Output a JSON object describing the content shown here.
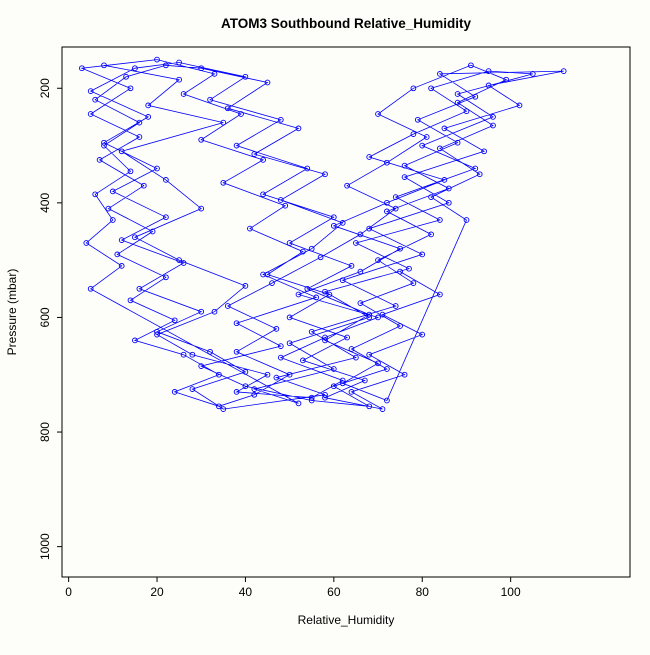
{
  "chart_data": {
    "type": "line",
    "title": "ATOM3 Southbound Relative_Humidity",
    "xlabel": "Relative_Humidity",
    "ylabel": "Pressure (mbar)",
    "series_color": "#0000ff",
    "marker": "circle-open",
    "grid": false,
    "legend": "none",
    "x_ticks": [
      0,
      20,
      40,
      60,
      80,
      100
    ],
    "y_ticks": [
      200,
      400,
      600,
      800,
      1000
    ],
    "xlim": [
      -1.5,
      127
    ],
    "ylim": [
      1053,
      128
    ],
    "y_axis_reversed": true,
    "points": [
      [
        8,
        160
      ],
      [
        25,
        185
      ],
      [
        18,
        230
      ],
      [
        35,
        260
      ],
      [
        12,
        310
      ],
      [
        22,
        360
      ],
      [
        30,
        410
      ],
      [
        15,
        460
      ],
      [
        25,
        500
      ],
      [
        40,
        545
      ],
      [
        33,
        590
      ],
      [
        20,
        630
      ],
      [
        28,
        665
      ],
      [
        45,
        700
      ],
      [
        38,
        730
      ],
      [
        55,
        740
      ],
      [
        62,
        710
      ],
      [
        48,
        670
      ],
      [
        58,
        635
      ],
      [
        70,
        600
      ],
      [
        52,
        560
      ],
      [
        66,
        520
      ],
      [
        75,
        480
      ],
      [
        60,
        440
      ],
      [
        72,
        400
      ],
      [
        85,
        360
      ],
      [
        68,
        320
      ],
      [
        78,
        280
      ],
      [
        90,
        240
      ],
      [
        82,
        200
      ],
      [
        95,
        170
      ],
      [
        105,
        175
      ],
      [
        88,
        210
      ],
      [
        96,
        250
      ],
      [
        80,
        300
      ],
      [
        92,
        340
      ],
      [
        74,
        390
      ],
      [
        84,
        430
      ],
      [
        65,
        470
      ],
      [
        77,
        515
      ],
      [
        58,
        555
      ],
      [
        68,
        600
      ],
      [
        50,
        645
      ],
      [
        60,
        690
      ],
      [
        42,
        725
      ],
      [
        52,
        750
      ],
      [
        5,
        550
      ],
      [
        12,
        510
      ],
      [
        4,
        470
      ],
      [
        10,
        430
      ],
      [
        6,
        385
      ],
      [
        14,
        345
      ],
      [
        8,
        300
      ],
      [
        16,
        260
      ],
      [
        6,
        220
      ],
      [
        13,
        180
      ],
      [
        22,
        160
      ],
      [
        30,
        165
      ],
      [
        45,
        190
      ],
      [
        36,
        235
      ],
      [
        52,
        270
      ],
      [
        42,
        315
      ],
      [
        58,
        350
      ],
      [
        48,
        395
      ],
      [
        62,
        435
      ],
      [
        55,
        480
      ],
      [
        44,
        525
      ],
      [
        56,
        565
      ],
      [
        38,
        610
      ],
      [
        48,
        650
      ],
      [
        30,
        685
      ],
      [
        40,
        720
      ],
      [
        55,
        745
      ],
      [
        68,
        755
      ],
      [
        60,
        720
      ],
      [
        72,
        690
      ],
      [
        64,
        655
      ],
      [
        75,
        615
      ],
      [
        66,
        575
      ],
      [
        78,
        540
      ],
      [
        70,
        500
      ],
      [
        82,
        455
      ],
      [
        72,
        415
      ],
      [
        86,
        375
      ],
      [
        76,
        335
      ],
      [
        88,
        295
      ],
      [
        79,
        255
      ],
      [
        92,
        215
      ],
      [
        84,
        175
      ],
      [
        112,
        170
      ],
      [
        95,
        195
      ],
      [
        102,
        230
      ],
      [
        85,
        270
      ],
      [
        94,
        310
      ],
      [
        76,
        355
      ],
      [
        86,
        400
      ],
      [
        68,
        445
      ],
      [
        80,
        490
      ],
      [
        62,
        535
      ],
      [
        74,
        580
      ],
      [
        55,
        625
      ],
      [
        65,
        670
      ],
      [
        47,
        705
      ],
      [
        58,
        735
      ],
      [
        35,
        760
      ],
      [
        28,
        725
      ],
      [
        40,
        695
      ],
      [
        32,
        660
      ],
      [
        20,
        625
      ],
      [
        30,
        590
      ],
      [
        16,
        550
      ],
      [
        26,
        505
      ],
      [
        12,
        465
      ],
      [
        22,
        425
      ],
      [
        10,
        380
      ],
      [
        20,
        340
      ],
      [
        8,
        295
      ],
      [
        18,
        250
      ],
      [
        5,
        205
      ],
      [
        15,
        165
      ],
      [
        25,
        155
      ],
      [
        40,
        180
      ],
      [
        32,
        220
      ],
      [
        48,
        255
      ],
      [
        38,
        300
      ],
      [
        54,
        340
      ],
      [
        44,
        385
      ],
      [
        60,
        425
      ],
      [
        50,
        470
      ],
      [
        64,
        510
      ],
      [
        54,
        550
      ],
      [
        68,
        595
      ],
      [
        58,
        640
      ],
      [
        70,
        680
      ],
      [
        62,
        715
      ],
      [
        72,
        745
      ],
      [
        90,
        430
      ],
      [
        82,
        390
      ],
      [
        93,
        350
      ],
      [
        84,
        305
      ],
      [
        96,
        265
      ],
      [
        88,
        225
      ],
      [
        99,
        185
      ],
      [
        91,
        160
      ],
      [
        78,
        200
      ],
      [
        70,
        245
      ],
      [
        81,
        285
      ],
      [
        72,
        330
      ],
      [
        63,
        370
      ],
      [
        74,
        410
      ],
      [
        66,
        455
      ],
      [
        57,
        495
      ],
      [
        46,
        540
      ],
      [
        36,
        580
      ],
      [
        47,
        620
      ],
      [
        38,
        660
      ],
      [
        50,
        700
      ],
      [
        42,
        735
      ],
      [
        34,
        755
      ],
      [
        24,
        730
      ],
      [
        34,
        700
      ],
      [
        26,
        665
      ],
      [
        15,
        640
      ],
      [
        24,
        605
      ],
      [
        14,
        570
      ],
      [
        22,
        530
      ],
      [
        11,
        490
      ],
      [
        19,
        450
      ],
      [
        9,
        410
      ],
      [
        17,
        370
      ],
      [
        7,
        325
      ],
      [
        16,
        285
      ],
      [
        5,
        245
      ],
      [
        14,
        200
      ],
      [
        3,
        165
      ],
      [
        20,
        150
      ],
      [
        33,
        175
      ],
      [
        26,
        210
      ],
      [
        39,
        245
      ],
      [
        30,
        290
      ],
      [
        44,
        325
      ],
      [
        35,
        365
      ],
      [
        49,
        405
      ],
      [
        41,
        445
      ],
      [
        53,
        485
      ],
      [
        45,
        525
      ],
      [
        59,
        560
      ],
      [
        50,
        600
      ],
      [
        63,
        635
      ],
      [
        53,
        675
      ],
      [
        67,
        710
      ],
      [
        58,
        740
      ],
      [
        71,
        760
      ],
      [
        64,
        730
      ],
      [
        76,
        700
      ],
      [
        68,
        665
      ],
      [
        80,
        630
      ],
      [
        71,
        595
      ],
      [
        84,
        560
      ],
      [
        75,
        520
      ]
    ]
  }
}
